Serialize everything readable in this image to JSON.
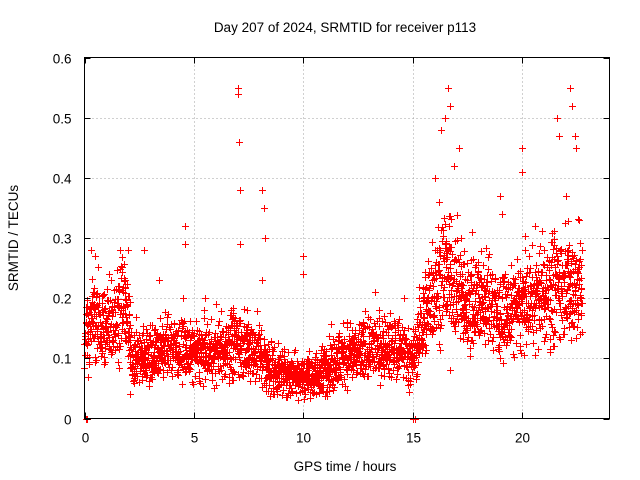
{
  "chart_data": {
    "type": "scatter",
    "title": "Day 207 of 2024, SRMTID for receiver p113",
    "xlabel": "GPS time / hours",
    "ylabel": "SRMTID / TECUs",
    "xlim": [
      0,
      24
    ],
    "ylim": [
      0,
      0.6
    ],
    "xticks": [
      0,
      5,
      10,
      15,
      20
    ],
    "yticks": [
      0,
      0.1,
      0.2,
      0.3,
      0.4,
      0.5,
      0.6
    ],
    "xtick_labels": [
      "0",
      "5",
      "10",
      "15",
      "20"
    ],
    "ytick_labels": [
      "0",
      "0.1",
      "0.2",
      "0.3",
      "0.4",
      "0.5",
      "0.6"
    ],
    "grid": true,
    "marker": "+",
    "point_color": "#ff0000",
    "series": [
      {
        "name": "SRMTID",
        "x_start": 0.0,
        "x_end": 22.75,
        "trend": [
          [
            0.0,
            0.13
          ],
          [
            0.4,
            0.17
          ],
          [
            0.9,
            0.15
          ],
          [
            1.4,
            0.17
          ],
          [
            1.8,
            0.2
          ],
          [
            2.2,
            0.1
          ],
          [
            3.0,
            0.11
          ],
          [
            4.0,
            0.12
          ],
          [
            5.0,
            0.11
          ],
          [
            6.0,
            0.11
          ],
          [
            7.0,
            0.13
          ],
          [
            8.0,
            0.11
          ],
          [
            8.5,
            0.08
          ],
          [
            9.5,
            0.075
          ],
          [
            10.5,
            0.07
          ],
          [
            11.5,
            0.1
          ],
          [
            12.5,
            0.11
          ],
          [
            13.5,
            0.12
          ],
          [
            14.5,
            0.11
          ],
          [
            15.0,
            0.1
          ],
          [
            15.5,
            0.17
          ],
          [
            16.0,
            0.22
          ],
          [
            16.5,
            0.25
          ],
          [
            17.0,
            0.22
          ],
          [
            17.5,
            0.19
          ],
          [
            18.0,
            0.2
          ],
          [
            18.5,
            0.19
          ],
          [
            19.0,
            0.17
          ],
          [
            19.5,
            0.18
          ],
          [
            20.0,
            0.19
          ],
          [
            20.5,
            0.2
          ],
          [
            21.0,
            0.21
          ],
          [
            21.5,
            0.22
          ],
          [
            22.0,
            0.23
          ],
          [
            22.5,
            0.22
          ],
          [
            22.75,
            0.21
          ]
        ],
        "spikes": [
          [
            0.05,
            0.0
          ],
          [
            0.12,
            0.0
          ],
          [
            0.3,
            0.28
          ],
          [
            0.5,
            0.27
          ],
          [
            1.1,
            0.24
          ],
          [
            1.6,
            0.28
          ],
          [
            2.0,
            0.28
          ],
          [
            2.1,
            0.04
          ],
          [
            2.7,
            0.28
          ],
          [
            3.4,
            0.23
          ],
          [
            4.5,
            0.2
          ],
          [
            4.6,
            0.32
          ],
          [
            4.6,
            0.29
          ],
          [
            5.5,
            0.2
          ],
          [
            6.0,
            0.19
          ],
          [
            7.0,
            0.55
          ],
          [
            7.0,
            0.54
          ],
          [
            7.05,
            0.46
          ],
          [
            7.1,
            0.38
          ],
          [
            7.1,
            0.29
          ],
          [
            8.1,
            0.38
          ],
          [
            8.2,
            0.35
          ],
          [
            8.25,
            0.3
          ],
          [
            8.1,
            0.23
          ],
          [
            10.0,
            0.27
          ],
          [
            10.0,
            0.24
          ],
          [
            10.6,
            0.04
          ],
          [
            12.0,
            0.16
          ],
          [
            13.3,
            0.21
          ],
          [
            14.6,
            0.2
          ],
          [
            15.0,
            0.0
          ],
          [
            15.1,
            0.0
          ],
          [
            15.3,
            0.2
          ],
          [
            16.0,
            0.4
          ],
          [
            16.2,
            0.36
          ],
          [
            16.3,
            0.48
          ],
          [
            16.5,
            0.5
          ],
          [
            16.6,
            0.55
          ],
          [
            16.7,
            0.52
          ],
          [
            16.9,
            0.42
          ],
          [
            17.1,
            0.45
          ],
          [
            17.2,
            0.3
          ],
          [
            16.7,
            0.08
          ],
          [
            17.7,
            0.31
          ],
          [
            18.0,
            0.26
          ],
          [
            19.0,
            0.37
          ],
          [
            19.1,
            0.34
          ],
          [
            19.0,
            0.1
          ],
          [
            20.0,
            0.45
          ],
          [
            20.0,
            0.41
          ],
          [
            20.6,
            0.32
          ],
          [
            21.0,
            0.28
          ],
          [
            21.3,
            0.11
          ],
          [
            21.6,
            0.5
          ],
          [
            21.7,
            0.47
          ],
          [
            22.0,
            0.37
          ],
          [
            22.2,
            0.55
          ],
          [
            22.3,
            0.52
          ],
          [
            22.4,
            0.47
          ],
          [
            22.45,
            0.45
          ],
          [
            22.6,
            0.33
          ],
          [
            22.3,
            0.16
          ],
          [
            22.7,
            0.2
          ]
        ]
      }
    ]
  }
}
